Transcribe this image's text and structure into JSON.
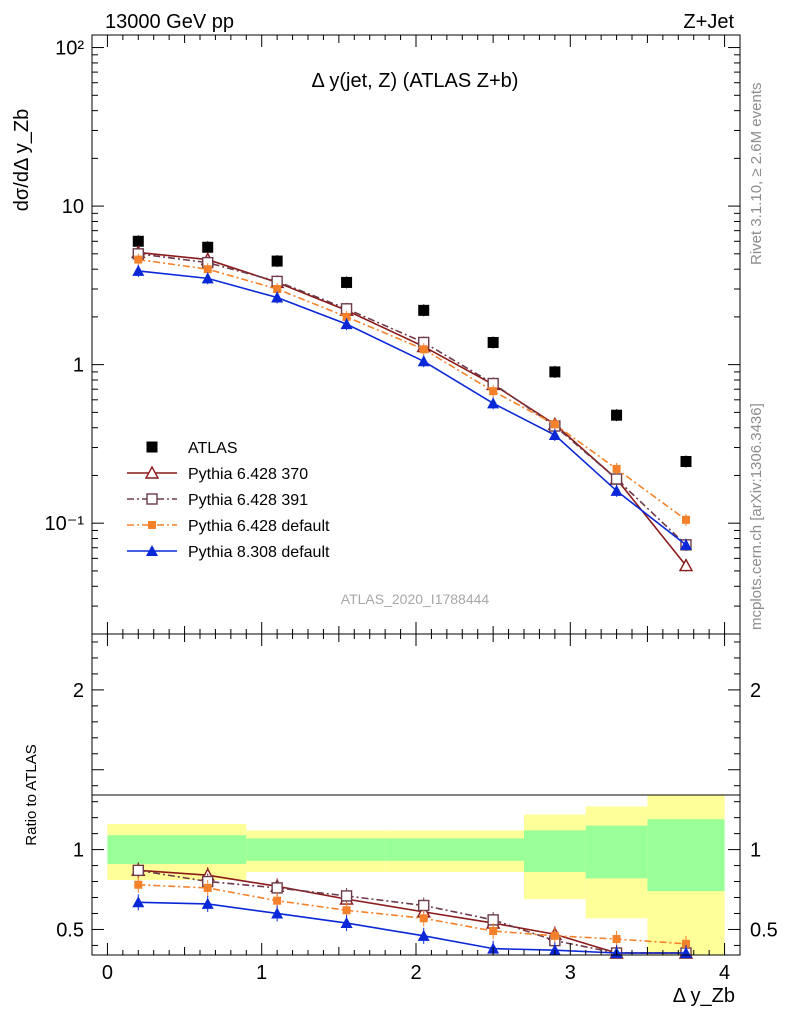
{
  "header": {
    "left": "13000 GeV pp",
    "right": "Z+Jet"
  },
  "side_labels": {
    "rivet": "Rivet 3.1.10, ≥ 2.6M events",
    "mcplots": "mcplots.cern.ch [arXiv:1306.3436]"
  },
  "watermark": "ATLAS_2020_I1788444",
  "chart_data": [
    {
      "type": "scatter",
      "title": "Δ y(jet, Z) (ATLAS Z+b)",
      "ylabel": "dσ/dΔ y_Zb",
      "xlabel": "Δ y_Zb",
      "xlim": [
        -0.1,
        4.1
      ],
      "ylim": [
        0.02,
        120
      ],
      "yscale": "log",
      "y_ticks": [
        {
          "value": 0.1,
          "label": "10⁻¹"
        },
        {
          "value": 1,
          "label": "1"
        },
        {
          "value": 10,
          "label": "10"
        },
        {
          "value": 100,
          "label": "10²"
        }
      ],
      "x": [
        0.2,
        0.65,
        1.1,
        1.55,
        2.05,
        2.5,
        2.9,
        3.3,
        3.75
      ],
      "bin_edges": [
        0,
        0.45,
        0.9,
        1.35,
        1.8,
        2.3,
        2.7,
        3.1,
        3.5,
        4.0
      ],
      "series": [
        {
          "name": "ATLAS",
          "color": "#000000",
          "marker": "filled-square",
          "line": "none",
          "values": [
            6.0,
            5.5,
            4.5,
            3.3,
            2.2,
            1.38,
            0.9,
            0.48,
            0.245
          ]
        },
        {
          "name": "Pythia 6.428 370",
          "color": "#8b1a1a",
          "marker": "open-triangle",
          "line": "solid",
          "values": [
            5.1,
            4.6,
            3.3,
            2.2,
            1.3,
            0.75,
            0.42,
            0.19,
            0.054
          ]
        },
        {
          "name": "Pythia 6.428 391",
          "color": "#6e3b4a",
          "marker": "open-square",
          "line": "dash-dot",
          "values": [
            5.0,
            4.4,
            3.35,
            2.25,
            1.38,
            0.76,
            0.41,
            0.19,
            0.073
          ]
        },
        {
          "name": "Pythia 6.428 default",
          "color": "#f5822a",
          "marker": "filled-square-small",
          "line": "dash-dot",
          "values": [
            4.6,
            4.0,
            3.0,
            2.0,
            1.25,
            0.68,
            0.42,
            0.22,
            0.105
          ]
        },
        {
          "name": "Pythia 8.308 default",
          "color": "#0a28d8",
          "marker": "filled-triangle",
          "line": "solid",
          "values": [
            3.9,
            3.5,
            2.65,
            1.8,
            1.05,
            0.57,
            0.36,
            0.16,
            0.073
          ]
        }
      ]
    },
    {
      "type": "line",
      "ylabel": "Ratio to ATLAS",
      "xlabel": "Δ y_Zb",
      "xlim": [
        -0.1,
        4.1
      ],
      "ylim": [
        0.34,
        2.35
      ],
      "y_ticks": [
        0.5,
        1,
        2
      ],
      "x_ticks": [
        0,
        1,
        2,
        3,
        4
      ],
      "x": [
        0.2,
        0.65,
        1.1,
        1.55,
        2.05,
        2.5,
        2.9,
        3.3,
        3.75
      ],
      "bands": {
        "bin_edges": [
          0,
          0.9,
          1.8,
          2.7,
          3.1,
          3.5,
          4.0
        ],
        "inner": [
          [
            0.91,
            1.09
          ],
          [
            0.93,
            1.07
          ],
          [
            0.93,
            1.07
          ],
          [
            0.86,
            1.12
          ],
          [
            0.82,
            1.15
          ],
          [
            0.74,
            1.19
          ]
        ],
        "outer": [
          [
            0.81,
            1.16
          ],
          [
            0.86,
            1.12
          ],
          [
            0.86,
            1.12
          ],
          [
            0.69,
            1.22
          ],
          [
            0.57,
            1.27
          ],
          [
            0.34,
            1.34
          ]
        ],
        "inner_color": "#99ff99",
        "outer_color": "#ffff99"
      },
      "series": [
        {
          "name": "Pythia 6.428 370",
          "values": [
            0.87,
            0.84,
            0.77,
            0.69,
            0.61,
            0.54,
            0.47,
            0.34,
            0.33
          ]
        },
        {
          "name": "Pythia 6.428 391",
          "values": [
            0.87,
            0.8,
            0.76,
            0.71,
            0.65,
            0.56,
            0.43,
            0.35,
            0.33
          ]
        },
        {
          "name": "Pythia 6.428 default",
          "values": [
            0.78,
            0.76,
            0.68,
            0.62,
            0.57,
            0.49,
            0.46,
            0.44,
            0.41
          ]
        },
        {
          "name": "Pythia 8.308 default",
          "values": [
            0.67,
            0.66,
            0.6,
            0.54,
            0.46,
            0.38,
            0.37,
            0.33,
            0.33
          ]
        }
      ]
    }
  ]
}
